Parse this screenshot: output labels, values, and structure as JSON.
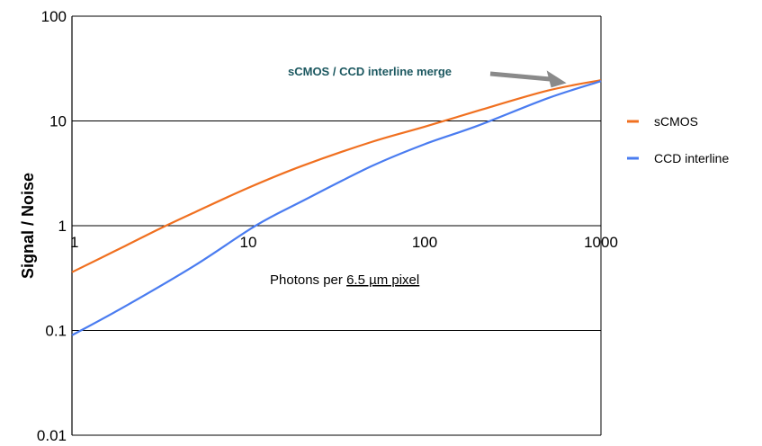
{
  "chart_data": {
    "type": "line",
    "title": "",
    "ylabel": "Signal / Noise",
    "xlabel_parts": [
      "Photons per ",
      "6.5 µm pixel"
    ],
    "x_scale": "log",
    "y_scale": "log",
    "xlim": [
      1,
      1000
    ],
    "ylim": [
      0.01,
      100
    ],
    "x_ticks": [
      {
        "value": 1,
        "label": "1"
      },
      {
        "value": 10,
        "label": "10"
      },
      {
        "value": 100,
        "label": "100"
      },
      {
        "value": 1000,
        "label": "1000"
      }
    ],
    "y_ticks": [
      {
        "value": 100,
        "label": "100"
      },
      {
        "value": 10,
        "label": "10"
      },
      {
        "value": 1,
        "label": "1"
      },
      {
        "value": 0.1,
        "label": "0.1"
      },
      {
        "value": 0.01,
        "label": "0.01"
      }
    ],
    "grid": "horizontal",
    "legend_position": "right",
    "series": [
      {
        "name": "sCMOS",
        "color": "#f07020",
        "x": [
          1,
          2,
          3.2,
          5,
          10,
          20,
          50,
          100,
          200,
          500,
          1000
        ],
        "y": [
          0.36,
          0.64,
          0.95,
          1.35,
          2.3,
          3.7,
          6.3,
          8.8,
          12.5,
          19.5,
          24.5
        ]
      },
      {
        "name": "CCD interline",
        "color": "#4a7cf0",
        "x": [
          1,
          2,
          5,
          11,
          20,
          50,
          100,
          200,
          500,
          1000
        ],
        "y": [
          0.09,
          0.17,
          0.42,
          1.0,
          1.7,
          3.7,
          6.0,
          9.0,
          16.5,
          24.0
        ]
      }
    ],
    "annotation": {
      "text": "sCMOS / CCD interline merge",
      "color": "#1c5860",
      "arrow_color": "#8a8a8a",
      "points_to": {
        "x": 700,
        "y": 23
      }
    }
  }
}
